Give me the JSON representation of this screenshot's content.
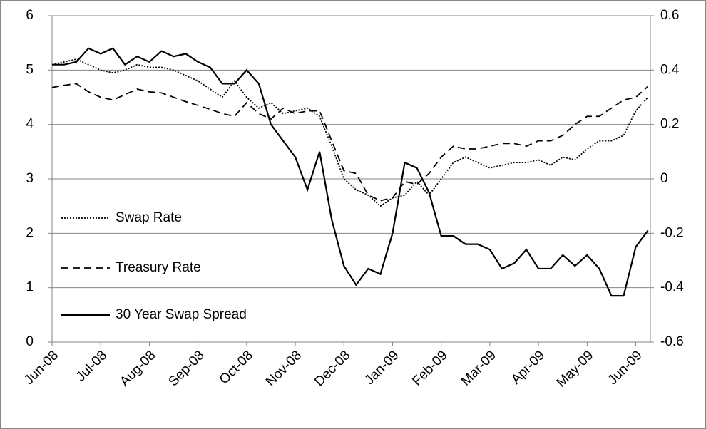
{
  "chart_data": {
    "type": "line",
    "x": [
      0,
      0.25,
      0.5,
      0.75,
      1,
      1.25,
      1.5,
      1.75,
      2,
      2.25,
      2.5,
      2.75,
      3,
      3.25,
      3.5,
      3.75,
      4,
      4.25,
      4.5,
      4.75,
      5,
      5.25,
      5.5,
      5.75,
      6,
      6.25,
      6.5,
      6.75,
      7,
      7.25,
      7.5,
      7.75,
      8,
      8.25,
      8.5,
      8.75,
      9,
      9.25,
      9.5,
      9.75,
      10,
      10.25,
      10.5,
      10.75,
      11,
      11.25,
      11.5,
      11.75,
      12,
      12.25
    ],
    "xlim": [
      0,
      12.3
    ],
    "xticks": [
      {
        "value": 0,
        "label": "Jun-08"
      },
      {
        "value": 1,
        "label": "Jul-08"
      },
      {
        "value": 2,
        "label": "Aug-08"
      },
      {
        "value": 3,
        "label": "Sep-08"
      },
      {
        "value": 4,
        "label": "Oct-08"
      },
      {
        "value": 5,
        "label": "Nov-08"
      },
      {
        "value": 6,
        "label": "Dec-08"
      },
      {
        "value": 7,
        "label": "Jan-09"
      },
      {
        "value": 8,
        "label": "Feb-09"
      },
      {
        "value": 9,
        "label": "Mar-09"
      },
      {
        "value": 10,
        "label": "Apr-09"
      },
      {
        "value": 11,
        "label": "May-09"
      },
      {
        "value": 12,
        "label": "Jun-09"
      }
    ],
    "ylim": [
      0,
      6
    ],
    "yticks": [
      0,
      1,
      2,
      3,
      4,
      5,
      6
    ],
    "y2lim": [
      -0.6,
      0.6
    ],
    "y2ticks": [
      -0.6,
      -0.4,
      -0.2,
      0,
      0.2,
      0.4,
      0.6
    ],
    "grid": true,
    "legend": "left",
    "series": [
      {
        "name": "Swap Rate",
        "color": "#000000",
        "dash": "dotted",
        "values": [
          5.1,
          5.15,
          5.2,
          5.1,
          5.0,
          4.95,
          5.0,
          5.1,
          5.05,
          5.05,
          5.0,
          4.9,
          4.8,
          4.65,
          4.5,
          4.8,
          4.5,
          4.3,
          4.4,
          4.2,
          4.25,
          4.3,
          4.15,
          3.6,
          3.0,
          2.8,
          2.7,
          2.5,
          2.65,
          2.7,
          2.95,
          2.7,
          3.0,
          3.3,
          3.4,
          3.3,
          3.2,
          3.25,
          3.3,
          3.3,
          3.35,
          3.25,
          3.4,
          3.35,
          3.55,
          3.7,
          3.7,
          3.8,
          4.25,
          4.5
        ]
      },
      {
        "name": "Treasury Rate",
        "color": "#000000",
        "dash": "dashed",
        "values": [
          4.68,
          4.72,
          4.75,
          4.6,
          4.5,
          4.45,
          4.55,
          4.65,
          4.6,
          4.58,
          4.5,
          4.42,
          4.35,
          4.28,
          4.2,
          4.15,
          4.4,
          4.2,
          4.1,
          4.3,
          4.2,
          4.25,
          4.25,
          3.7,
          3.15,
          3.1,
          2.7,
          2.6,
          2.65,
          2.95,
          2.9,
          3.1,
          3.4,
          3.6,
          3.55,
          3.55,
          3.6,
          3.65,
          3.65,
          3.6,
          3.7,
          3.7,
          3.8,
          4.0,
          4.15,
          4.15,
          4.3,
          4.45,
          4.5,
          4.7
        ]
      },
      {
        "name": "30 Year Swap Spread",
        "color": "#000000",
        "dash": "solid",
        "axis": "y2",
        "values": [
          0.42,
          0.42,
          0.43,
          0.48,
          0.46,
          0.48,
          0.42,
          0.45,
          0.43,
          0.47,
          0.45,
          0.46,
          0.43,
          0.41,
          0.35,
          0.35,
          0.4,
          0.35,
          0.2,
          0.14,
          0.08,
          -0.04,
          0.1,
          -0.15,
          -0.32,
          -0.39,
          -0.33,
          -0.35,
          -0.2,
          0.06,
          0.04,
          -0.05,
          -0.21,
          -0.21,
          -0.24,
          -0.24,
          -0.26,
          -0.33,
          -0.31,
          -0.26,
          -0.33,
          -0.33,
          -0.28,
          -0.32,
          -0.28,
          -0.33,
          -0.43,
          -0.43,
          -0.25,
          -0.19
        ]
      }
    ]
  }
}
